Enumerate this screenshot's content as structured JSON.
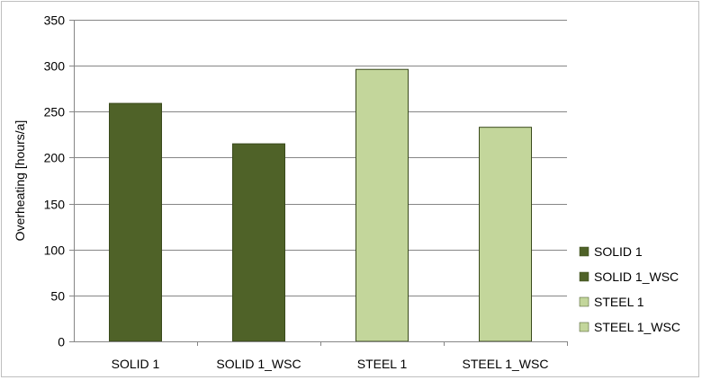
{
  "chart_data": {
    "type": "bar",
    "categories": [
      "SOLID 1",
      "SOLID 1_WSC",
      "STEEL 1",
      "STEEL 1_WSC"
    ],
    "values": [
      259,
      215,
      296,
      233
    ],
    "series": [
      {
        "name": "SOLID 1",
        "values": [
          259,
          null,
          null,
          null
        ],
        "color": "#4f6228"
      },
      {
        "name": "SOLID 1_WSC",
        "values": [
          null,
          215,
          null,
          null
        ],
        "color": "#4f6228"
      },
      {
        "name": "STEEL 1",
        "values": [
          null,
          null,
          296,
          null
        ],
        "color": "#c3d69b"
      },
      {
        "name": "STEEL 1_WSC",
        "values": [
          null,
          null,
          null,
          233
        ],
        "color": "#c3d69b"
      }
    ],
    "title": "",
    "xlabel": "",
    "ylabel": "Overheating [hours/a]",
    "ylim": [
      0,
      350
    ],
    "yticks": [
      "0",
      "50",
      "100",
      "150",
      "200",
      "250",
      "300",
      "350"
    ],
    "grid": true,
    "legend_position": "right",
    "legend": [
      "SOLID 1",
      "SOLID 1_WSC",
      "STEEL 1",
      "STEEL 1_WSC"
    ],
    "colors": {
      "dark_green": "#4f6228",
      "light_green": "#c3d69b",
      "grid": "#868686",
      "axis": "#868686"
    }
  }
}
